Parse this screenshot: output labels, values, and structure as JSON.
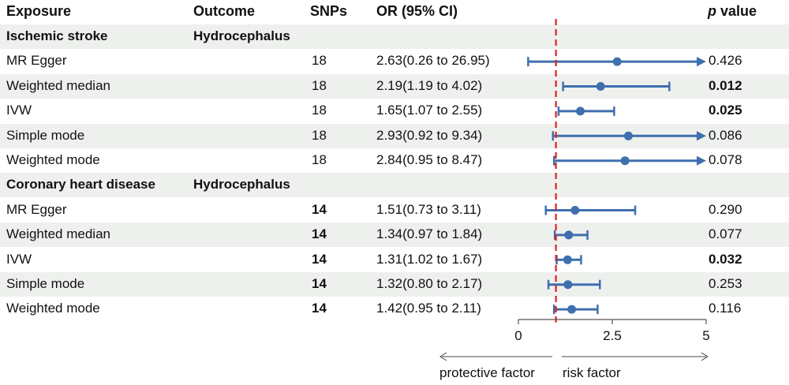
{
  "headers": {
    "exposure": "Exposure",
    "outcome": "Outcome",
    "snps": "SNPs",
    "or": "OR (95% CI)",
    "p_italic": "p",
    "p_rest": " value"
  },
  "colors": {
    "marker": "#3f6fae",
    "ref_line": "#e02020",
    "band": "#eef0ee"
  },
  "chart_data": {
    "type": "forest",
    "reference_line": 1,
    "xlim": [
      0,
      5
    ],
    "x_ticks": [
      "0",
      "2.5",
      "5"
    ],
    "x_tick_values": [
      0,
      2.5,
      5
    ],
    "arrow_left_label": "protective factor",
    "arrow_right_label": "risk factor",
    "groups": [
      {
        "exposure": "Ischemic stroke",
        "outcome": "Hydrocephalus",
        "rows": [
          {
            "method": "MR Egger",
            "snps": "18",
            "or_text": "2.63(0.26 to 26.95)",
            "or": 2.63,
            "lo": 0.26,
            "hi": 26.95,
            "p": "0.426",
            "sig": false
          },
          {
            "method": "Weighted median",
            "snps": "18",
            "or_text": "2.19(1.19 to 4.02)",
            "or": 2.19,
            "lo": 1.19,
            "hi": 4.02,
            "p": "0.012",
            "sig": true
          },
          {
            "method": "IVW",
            "snps": "18",
            "or_text": "1.65(1.07 to 2.55)",
            "or": 1.65,
            "lo": 1.07,
            "hi": 2.55,
            "p": "0.025",
            "sig": true
          },
          {
            "method": "Simple mode",
            "snps": "18",
            "or_text": "2.93(0.92 to 9.34)",
            "or": 2.93,
            "lo": 0.92,
            "hi": 9.34,
            "p": "0.086",
            "sig": false
          },
          {
            "method": "Weighted mode",
            "snps": "18",
            "or_text": "2.84(0.95 to 8.47)",
            "or": 2.84,
            "lo": 0.95,
            "hi": 8.47,
            "p": "0.078",
            "sig": false
          }
        ]
      },
      {
        "exposure": "Coronary heart disease",
        "outcome": "Hydrocephalus",
        "rows": [
          {
            "method": "MR Egger",
            "snps": "14",
            "or_text": "1.51(0.73 to 3.11)",
            "or": 1.51,
            "lo": 0.73,
            "hi": 3.11,
            "p": "0.290",
            "sig": false
          },
          {
            "method": "Weighted median",
            "snps": "14",
            "or_text": "1.34(0.97 to 1.84)",
            "or": 1.34,
            "lo": 0.97,
            "hi": 1.84,
            "p": "0.077",
            "sig": false
          },
          {
            "method": "IVW",
            "snps": "14",
            "or_text": "1.31(1.02 to 1.67)",
            "or": 1.31,
            "lo": 1.02,
            "hi": 1.67,
            "p": "0.032",
            "sig": true
          },
          {
            "method": "Simple mode",
            "snps": "14",
            "or_text": "1.32(0.80 to 2.17)",
            "or": 1.32,
            "lo": 0.8,
            "hi": 2.17,
            "p": "0.253",
            "sig": false
          },
          {
            "method": "Weighted mode",
            "snps": "14",
            "or_text": "1.42(0.95 to 2.11)",
            "or": 1.42,
            "lo": 0.95,
            "hi": 2.11,
            "p": "0.116",
            "sig": false
          }
        ]
      }
    ]
  }
}
